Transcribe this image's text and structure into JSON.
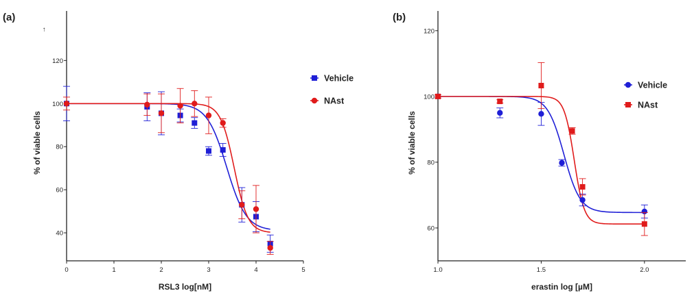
{
  "chart_data": [
    {
      "type": "scatter",
      "panel_label": "(a)",
      "xlabel": "RSL3  log[nM]",
      "ylabel": "% of viable cells",
      "xlim": [
        0,
        5
      ],
      "ylim": [
        27,
        143
      ],
      "xticks": [
        0,
        1,
        2,
        3,
        4,
        5
      ],
      "yticks": [
        40,
        60,
        80,
        100,
        120
      ],
      "stray_mark": "↑",
      "legend_position": "right",
      "fits": [
        {
          "top": 100,
          "bottom": 41,
          "ec50_log": 3.38,
          "hill": 2.1,
          "x_range": [
            0,
            4.3
          ]
        },
        {
          "top": 100,
          "bottom": 40,
          "ec50_log": 3.54,
          "hill": 3.0,
          "x_range": [
            0,
            4.3
          ]
        }
      ],
      "series": [
        {
          "name": "Vehicle",
          "marker": "square",
          "color": "#1f1fd6",
          "points": [
            {
              "x": 0,
              "y": 100,
              "err": 8
            },
            {
              "x": 1.7,
              "y": 98.5,
              "err": 6.5
            },
            {
              "x": 2.0,
              "y": 95.5,
              "err": 10
            },
            {
              "x": 2.4,
              "y": 94.5,
              "err": 3
            },
            {
              "x": 2.7,
              "y": 91,
              "err": 2.5
            },
            {
              "x": 3.0,
              "y": 78,
              "err": 2
            },
            {
              "x": 3.3,
              "y": 78.5,
              "err": 3
            },
            {
              "x": 3.7,
              "y": 53,
              "err": 8
            },
            {
              "x": 4.0,
              "y": 47.5,
              "err": 7
            },
            {
              "x": 4.3,
              "y": 35,
              "err": 4
            }
          ]
        },
        {
          "name": "NAst",
          "marker": "circle",
          "color": "#e01b1b",
          "points": [
            {
              "x": 0,
              "y": 100,
              "err": 3
            },
            {
              "x": 1.7,
              "y": 99.5,
              "err": 5
            },
            {
              "x": 2.0,
              "y": 95.5,
              "err": 9
            },
            {
              "x": 2.4,
              "y": 99,
              "err": 8
            },
            {
              "x": 2.7,
              "y": 100,
              "err": 6
            },
            {
              "x": 3.0,
              "y": 94.5,
              "err": 8.5
            },
            {
              "x": 3.3,
              "y": 91,
              "err": 2
            },
            {
              "x": 3.7,
              "y": 53,
              "err": 6.5
            },
            {
              "x": 4.0,
              "y": 51,
              "err": 11
            },
            {
              "x": 4.3,
              "y": 33,
              "err": 3
            }
          ]
        }
      ]
    },
    {
      "type": "scatter",
      "panel_label": "(b)",
      "xlabel": "erastin log [µM]",
      "ylabel": "% of viable cells",
      "xlim": [
        1.0,
        2.2
      ],
      "ylim": [
        50,
        126
      ],
      "xticks": [
        1.0,
        1.5,
        2.0
      ],
      "xtick_labels": [
        "1.0",
        "1.5",
        "2.0"
      ],
      "yticks": [
        60,
        80,
        100,
        120
      ],
      "legend_position": "right",
      "fits": [
        {
          "top": 100,
          "bottom": 64.7,
          "ec50_log": 1.61,
          "hill": 11,
          "x_range": [
            1.0,
            2.0
          ]
        },
        {
          "top": 100,
          "bottom": 61.2,
          "ec50_log": 1.66,
          "hill": 18,
          "x_range": [
            1.0,
            2.0
          ]
        }
      ],
      "series": [
        {
          "name": "Vehicle",
          "marker": "circle",
          "color": "#1f1fd6",
          "points": [
            {
              "x": 1.0,
              "y": 100,
              "err": 0.5
            },
            {
              "x": 1.3,
              "y": 95,
              "err": 1.5
            },
            {
              "x": 1.5,
              "y": 94.7,
              "err": 3.5
            },
            {
              "x": 1.6,
              "y": 79.8,
              "err": 1
            },
            {
              "x": 1.7,
              "y": 68.5,
              "err": 1.8
            },
            {
              "x": 2.0,
              "y": 65,
              "err": 2
            }
          ]
        },
        {
          "name": "NAst",
          "marker": "square",
          "color": "#e01b1b",
          "points": [
            {
              "x": 1.0,
              "y": 100,
              "err": 0.5
            },
            {
              "x": 1.3,
              "y": 98.5,
              "err": 0.5
            },
            {
              "x": 1.5,
              "y": 103.3,
              "err": 7
            },
            {
              "x": 1.65,
              "y": 89.5,
              "err": 1
            },
            {
              "x": 1.7,
              "y": 72.5,
              "err": 2.5
            },
            {
              "x": 2.0,
              "y": 61.2,
              "err": 3.5
            }
          ]
        }
      ]
    }
  ]
}
